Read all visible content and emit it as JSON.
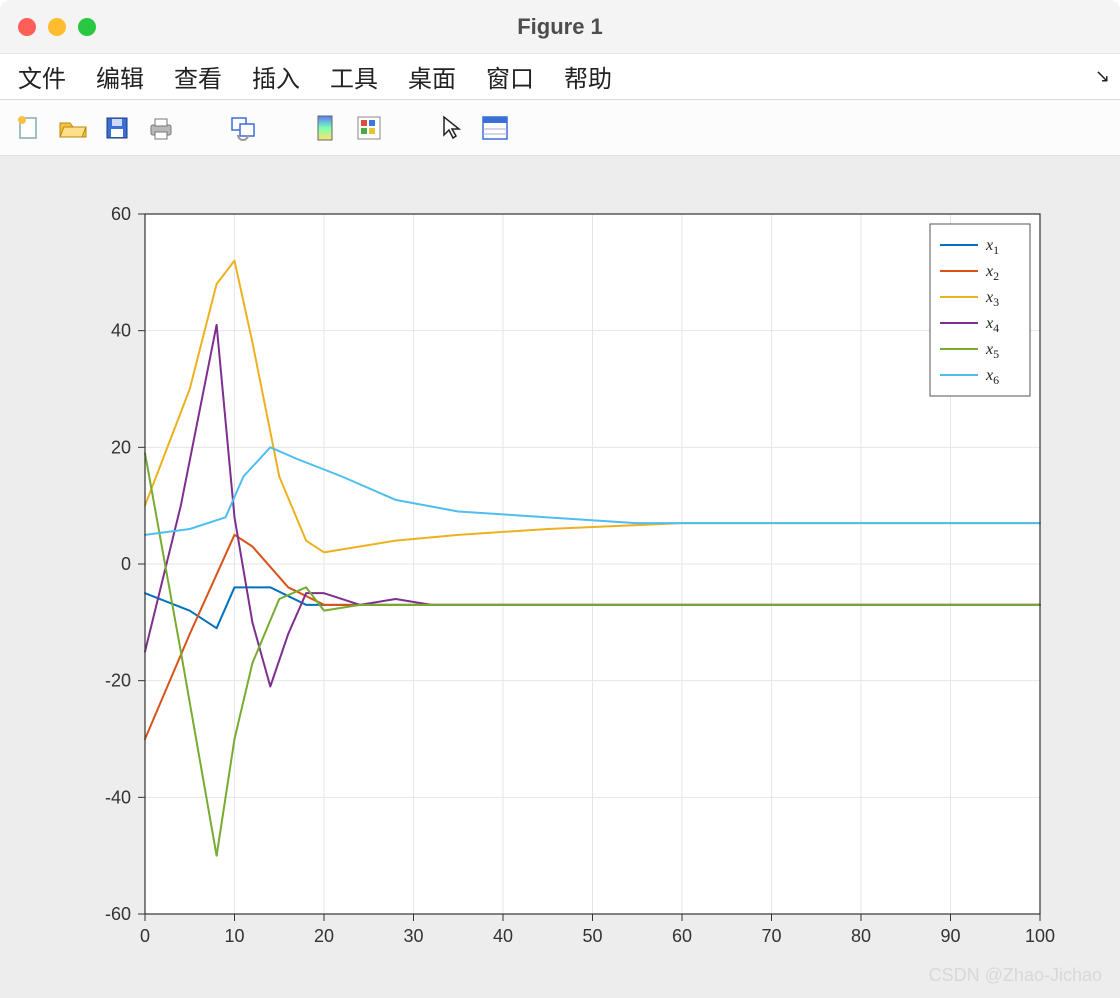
{
  "window": {
    "title": "Figure 1",
    "traffic_colors": {
      "close": "#ff5f57",
      "min": "#febc2e",
      "max": "#28c840"
    }
  },
  "menu": {
    "items": [
      "文件",
      "编辑",
      "查看",
      "插入",
      "工具",
      "桌面",
      "窗口",
      "帮助"
    ]
  },
  "toolbar": {
    "icons": [
      "new-file-icon",
      "open-folder-icon",
      "save-icon",
      "print-icon",
      "link-icon",
      "colormap-icon",
      "colorbar-icon",
      "pointer-icon",
      "inspector-icon"
    ]
  },
  "chart": {
    "type": "line",
    "background_color": "#ffffff",
    "figure_bg": "#ededed",
    "axis_box_color": "#333333",
    "grid_color": "#e6e6e6",
    "xlim": [
      0,
      100
    ],
    "ylim": [
      -60,
      60
    ],
    "xtick_step": 10,
    "ytick_step": 20,
    "tick_fontsize": 18,
    "line_width": 2,
    "legend": {
      "position": "top-right",
      "border_color": "#555555",
      "bg": "#ffffff",
      "items": [
        {
          "label": "x",
          "sub": "1",
          "color": "#0072bd"
        },
        {
          "label": "x",
          "sub": "2",
          "color": "#d95319"
        },
        {
          "label": "x",
          "sub": "3",
          "color": "#edb120"
        },
        {
          "label": "x",
          "sub": "4",
          "color": "#7e2f8e"
        },
        {
          "label": "x",
          "sub": "5",
          "color": "#77ac30"
        },
        {
          "label": "x",
          "sub": "6",
          "color": "#4dbeee"
        }
      ]
    },
    "series": [
      {
        "name": "x1",
        "color": "#0072bd",
        "points": [
          [
            0,
            -5
          ],
          [
            5,
            -8
          ],
          [
            8,
            -11
          ],
          [
            10,
            -4
          ],
          [
            14,
            -4
          ],
          [
            18,
            -7
          ],
          [
            22,
            -7
          ],
          [
            26,
            -7
          ],
          [
            30,
            -7
          ],
          [
            40,
            -7
          ],
          [
            60,
            -7
          ],
          [
            100,
            -7
          ]
        ]
      },
      {
        "name": "x2",
        "color": "#d95319",
        "points": [
          [
            0,
            -30
          ],
          [
            5,
            -12
          ],
          [
            10,
            5
          ],
          [
            12,
            3
          ],
          [
            16,
            -4
          ],
          [
            20,
            -7
          ],
          [
            26,
            -7
          ],
          [
            30,
            -7
          ],
          [
            40,
            -7
          ],
          [
            60,
            -7
          ],
          [
            100,
            -7
          ]
        ]
      },
      {
        "name": "x3",
        "color": "#edb120",
        "points": [
          [
            0,
            10
          ],
          [
            5,
            30
          ],
          [
            8,
            48
          ],
          [
            10,
            52
          ],
          [
            12,
            38
          ],
          [
            15,
            15
          ],
          [
            18,
            4
          ],
          [
            20,
            2
          ],
          [
            24,
            3
          ],
          [
            28,
            4
          ],
          [
            35,
            5
          ],
          [
            45,
            6
          ],
          [
            60,
            7
          ],
          [
            100,
            7
          ]
        ]
      },
      {
        "name": "x4",
        "color": "#7e2f8e",
        "points": [
          [
            0,
            -15
          ],
          [
            4,
            10
          ],
          [
            8,
            41
          ],
          [
            10,
            8
          ],
          [
            12,
            -10
          ],
          [
            14,
            -21
          ],
          [
            16,
            -12
          ],
          [
            18,
            -5
          ],
          [
            20,
            -5
          ],
          [
            24,
            -7
          ],
          [
            28,
            -6
          ],
          [
            32,
            -7
          ],
          [
            40,
            -7
          ],
          [
            60,
            -7
          ],
          [
            100,
            -7
          ]
        ]
      },
      {
        "name": "x5",
        "color": "#77ac30",
        "points": [
          [
            0,
            19
          ],
          [
            4,
            -15
          ],
          [
            8,
            -50
          ],
          [
            10,
            -30
          ],
          [
            12,
            -17
          ],
          [
            15,
            -6
          ],
          [
            18,
            -4
          ],
          [
            20,
            -8
          ],
          [
            24,
            -7
          ],
          [
            30,
            -7
          ],
          [
            40,
            -7
          ],
          [
            60,
            -7
          ],
          [
            100,
            -7
          ]
        ]
      },
      {
        "name": "x6",
        "color": "#4dbeee",
        "points": [
          [
            0,
            5
          ],
          [
            5,
            6
          ],
          [
            9,
            8
          ],
          [
            11,
            15
          ],
          [
            14,
            20
          ],
          [
            17,
            18
          ],
          [
            22,
            15
          ],
          [
            28,
            11
          ],
          [
            35,
            9
          ],
          [
            45,
            8
          ],
          [
            55,
            7
          ],
          [
            70,
            7
          ],
          [
            100,
            7
          ]
        ]
      }
    ]
  },
  "watermark": "CSDN @Zhao-Jichao"
}
